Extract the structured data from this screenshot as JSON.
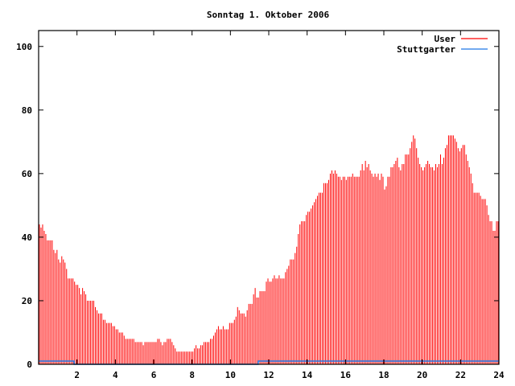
{
  "chart_data": {
    "type": "bar",
    "title": "Sonntag 1. Oktober 2006",
    "xlabel": "",
    "ylabel": "",
    "xlim": [
      0,
      24
    ],
    "ylim": [
      0,
      105
    ],
    "x_ticks": [
      2,
      4,
      6,
      8,
      10,
      12,
      14,
      16,
      18,
      20,
      22,
      24
    ],
    "x_tick_labels": [
      "2",
      "4",
      "6",
      "8",
      "10",
      "12",
      "14",
      "16",
      "18",
      "20",
      "22",
      "24"
    ],
    "y_ticks": [
      0,
      20,
      40,
      60,
      80,
      100
    ],
    "y_tick_labels": [
      "0",
      "20",
      "40",
      "60",
      "80",
      "100"
    ],
    "grid": false,
    "legend_position": "top-right",
    "series": [
      {
        "name": "User",
        "style": "impulses",
        "color": "#ff0000",
        "interval_hours": 0.08333,
        "values": [
          44,
          43,
          44,
          42,
          41,
          39,
          39,
          39,
          39,
          36,
          35,
          36,
          33,
          32,
          34,
          33,
          32,
          30,
          27,
          27,
          27,
          27,
          26,
          25,
          25,
          24,
          22,
          24,
          23,
          22,
          20,
          20,
          20,
          20,
          20,
          18,
          17,
          16,
          16,
          16,
          14,
          14,
          13,
          13,
          13,
          13,
          12,
          12,
          11,
          11,
          10,
          10,
          10,
          9,
          8,
          8,
          8,
          8,
          8,
          8,
          7,
          7,
          7,
          7,
          7,
          6,
          7,
          7,
          7,
          7,
          7,
          7,
          7,
          7,
          8,
          8,
          7,
          6,
          7,
          7,
          8,
          8,
          8,
          7,
          6,
          5,
          4,
          4,
          4,
          4,
          4,
          4,
          4,
          4,
          4,
          4,
          4,
          5,
          6,
          5,
          5,
          6,
          6,
          7,
          7,
          7,
          7,
          8,
          8,
          9,
          10,
          11,
          12,
          11,
          11,
          12,
          11,
          11,
          11,
          13,
          13,
          13,
          14,
          15,
          18,
          17,
          16,
          16,
          16,
          15,
          17,
          19,
          19,
          19,
          22,
          24,
          21,
          21,
          23,
          23,
          23,
          23,
          26,
          27,
          26,
          26,
          27,
          28,
          27,
          27,
          28,
          27,
          27,
          27,
          29,
          30,
          31,
          33,
          33,
          33,
          35,
          37,
          41,
          44,
          45,
          45,
          45,
          47,
          48,
          48,
          49,
          50,
          51,
          52,
          53,
          54,
          54,
          54,
          57,
          57,
          57,
          58,
          60,
          61,
          60,
          61,
          60,
          59,
          59,
          58,
          59,
          59,
          58,
          59,
          59,
          59,
          60,
          59,
          59,
          59,
          59,
          61,
          63,
          61,
          64,
          62,
          63,
          61,
          60,
          59,
          60,
          59,
          60,
          58,
          60,
          59,
          55,
          56,
          59,
          59,
          62,
          62,
          63,
          64,
          65,
          62,
          61,
          63,
          63,
          66,
          66,
          66,
          68,
          70,
          72,
          71,
          68,
          65,
          63,
          62,
          61,
          62,
          63,
          64,
          63,
          62,
          62,
          61,
          63,
          62,
          63,
          66,
          63,
          65,
          68,
          69,
          72,
          72,
          72,
          72,
          71,
          70,
          68,
          67,
          68,
          69,
          69,
          66,
          64,
          62,
          60,
          57,
          54,
          54,
          54,
          54,
          53,
          52,
          52,
          52,
          50,
          47,
          45,
          45,
          42,
          42,
          45,
          45
        ]
      },
      {
        "name": "Stuttgarter",
        "style": "steps",
        "color": "#1e78e6",
        "points": [
          [
            0,
            1
          ],
          [
            1.85,
            0
          ],
          [
            11.45,
            1
          ],
          [
            24,
            1
          ]
        ]
      }
    ]
  }
}
